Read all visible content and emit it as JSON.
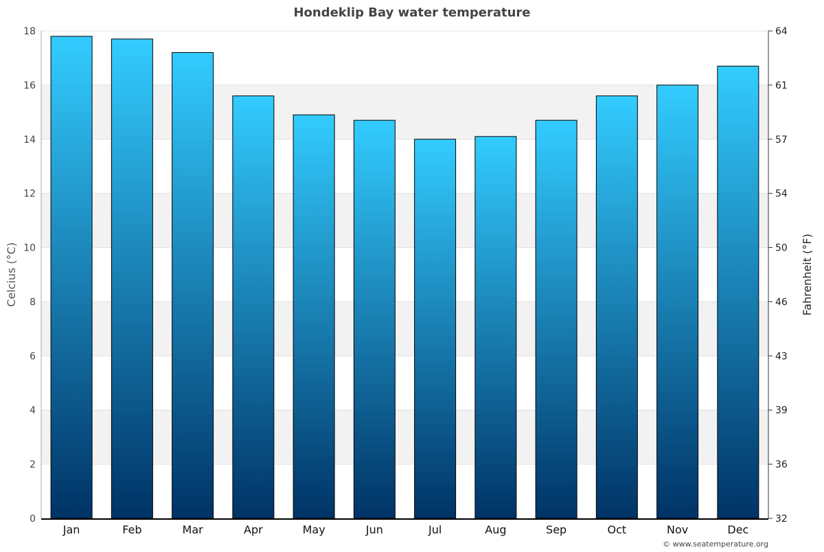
{
  "chart_data": {
    "type": "bar",
    "title": "Hondeklip Bay water temperature",
    "categories": [
      "Jan",
      "Feb",
      "Mar",
      "Apr",
      "May",
      "Jun",
      "Jul",
      "Aug",
      "Sep",
      "Oct",
      "Nov",
      "Dec"
    ],
    "values": [
      17.8,
      17.7,
      17.2,
      15.6,
      14.9,
      14.7,
      14.0,
      14.1,
      14.7,
      15.6,
      16.0,
      16.7
    ],
    "ylabel": "Celcius (°C)",
    "ylabel_right": "Fahrenheit (°F)",
    "ylim": [
      0,
      18
    ],
    "yticks": [
      "0",
      "2",
      "4",
      "6",
      "8",
      "10",
      "12",
      "14",
      "16",
      "18"
    ],
    "yticks_right": [
      "32",
      "36",
      "39",
      "43",
      "46",
      "50",
      "54",
      "57",
      "61",
      "64"
    ],
    "grid": true,
    "colors": {
      "bar_top": "#33ccff",
      "bar_bottom": "#003366",
      "band": "#f2f2f2"
    },
    "credit": "© www.seatemperature.org"
  }
}
